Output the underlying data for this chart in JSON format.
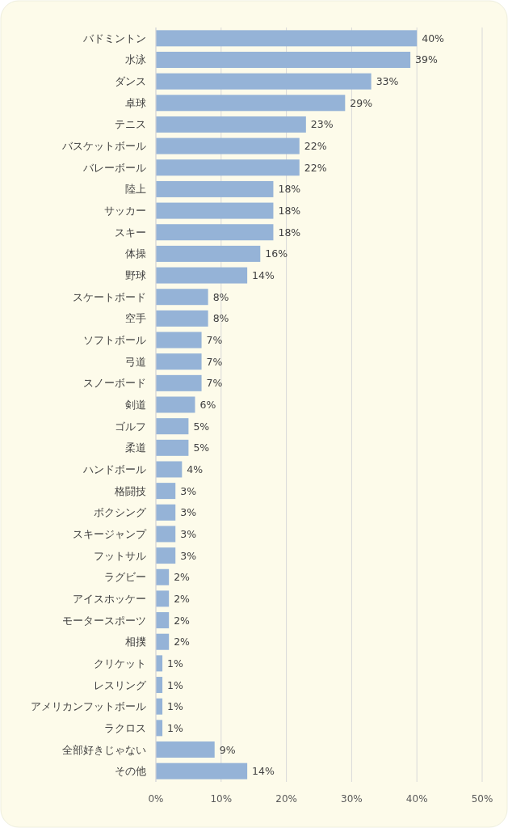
{
  "chart_data": {
    "type": "bar",
    "orientation": "horizontal",
    "categories": [
      "バドミントン",
      "水泳",
      "ダンス",
      "卓球",
      "テニス",
      "バスケットボール",
      "バレーボール",
      "陸上",
      "サッカー",
      "スキー",
      "体操",
      "野球",
      "スケートボード",
      "空手",
      "ソフトボール",
      "弓道",
      "スノーボード",
      "剣道",
      "ゴルフ",
      "柔道",
      "ハンドボール",
      "格闘技",
      "ボクシング",
      "スキージャンプ",
      "フットサル",
      "ラグビー",
      "アイスホッケー",
      "モータースポーツ",
      "相撲",
      "クリケット",
      "レスリング",
      "アメリカンフットボール",
      "ラクロス",
      "全部好きじゃない",
      "その他"
    ],
    "values": [
      40,
      39,
      33,
      29,
      23,
      22,
      22,
      18,
      18,
      18,
      16,
      14,
      8,
      8,
      7,
      7,
      7,
      6,
      5,
      5,
      4,
      3,
      3,
      3,
      3,
      2,
      2,
      2,
      2,
      1,
      1,
      1,
      1,
      9,
      14
    ],
    "value_labels": [
      "40%",
      "39%",
      "33%",
      "29%",
      "23%",
      "22%",
      "22%",
      "18%",
      "18%",
      "18%",
      "16%",
      "14%",
      "8%",
      "8%",
      "7%",
      "7%",
      "7%",
      "6%",
      "5%",
      "5%",
      "4%",
      "3%",
      "3%",
      "3%",
      "3%",
      "2%",
      "2%",
      "2%",
      "2%",
      "1%",
      "1%",
      "1%",
      "1%",
      "9%",
      "14%"
    ],
    "color": "#95b3d7",
    "xlim": [
      0,
      50
    ],
    "xticks": [
      {
        "value": 0,
        "label": "0%"
      },
      {
        "value": 10,
        "label": "10%"
      },
      {
        "value": 20,
        "label": "20%"
      },
      {
        "value": 30,
        "label": "30%"
      },
      {
        "value": 40,
        "label": "40%"
      },
      {
        "value": 50,
        "label": "50%"
      }
    ],
    "grid": "x"
  }
}
